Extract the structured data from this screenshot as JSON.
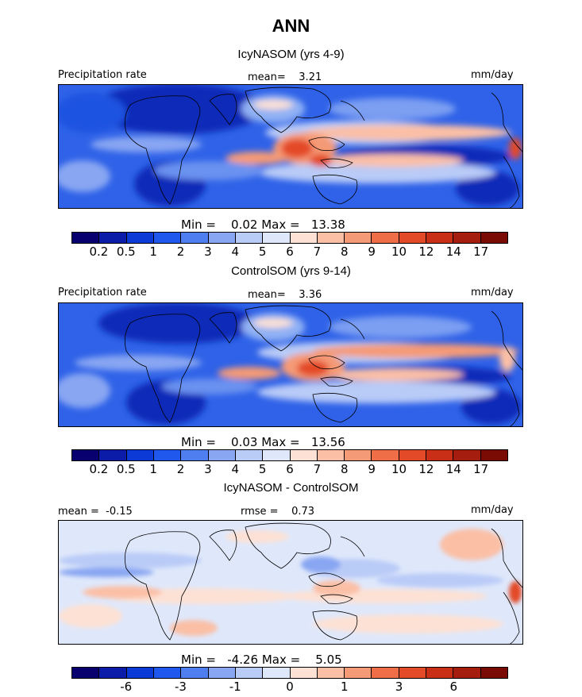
{
  "title": "ANN",
  "palette": {
    "abs": [
      "#08006e",
      "#0a1ca8",
      "#0b3ad6",
      "#2058ee",
      "#4f7ef0",
      "#88a6f2",
      "#b9cbf7",
      "#dfe8fb",
      "#fde1d4",
      "#fbbfa6",
      "#f59a76",
      "#ef6e47",
      "#e34a27",
      "#c92e17",
      "#a51d0e",
      "#7a0a04"
    ],
    "diff": [
      "#08006e",
      "#0a1ca8",
      "#0b3ad6",
      "#2058ee",
      "#4f7ef0",
      "#88a6f2",
      "#b9cbf7",
      "#dfe8fb",
      "#fde1d4",
      "#fbbfa6",
      "#f59a76",
      "#ef6e47",
      "#e34a27",
      "#c92e17",
      "#a51d0e",
      "#7a0a04"
    ]
  },
  "panels": [
    {
      "title": "IcyNASOM (yrs 4-9)",
      "left_label": "Precipitation rate",
      "center_label": "mean=    3.21",
      "right_label": "mm/day",
      "minmax": "Min =    0.02 Max =   13.38",
      "ticks": [
        "0.2",
        "0.5",
        "1",
        "2",
        "3",
        "4",
        "5",
        "6",
        "7",
        "8",
        "9",
        "10",
        "12",
        "14",
        "17"
      ]
    },
    {
      "title": "ControlSOM (yrs 9-14)",
      "left_label": "Precipitation rate",
      "center_label": "mean=    3.36",
      "right_label": "mm/day",
      "minmax": "Min =    0.03 Max =   13.56",
      "ticks": [
        "0.2",
        "0.5",
        "1",
        "2",
        "3",
        "4",
        "5",
        "6",
        "7",
        "8",
        "9",
        "10",
        "12",
        "14",
        "17"
      ]
    },
    {
      "title": "IcyNASOM - ControlSOM",
      "left_label": "mean =  -0.15",
      "center_label": "rmse =    0.73",
      "right_label": "mm/day",
      "minmax": "Min =   -4.26 Max =    5.05",
      "ticks": [
        "-6",
        "-3",
        "-1",
        "0",
        "1",
        "3",
        "6"
      ]
    }
  ]
}
